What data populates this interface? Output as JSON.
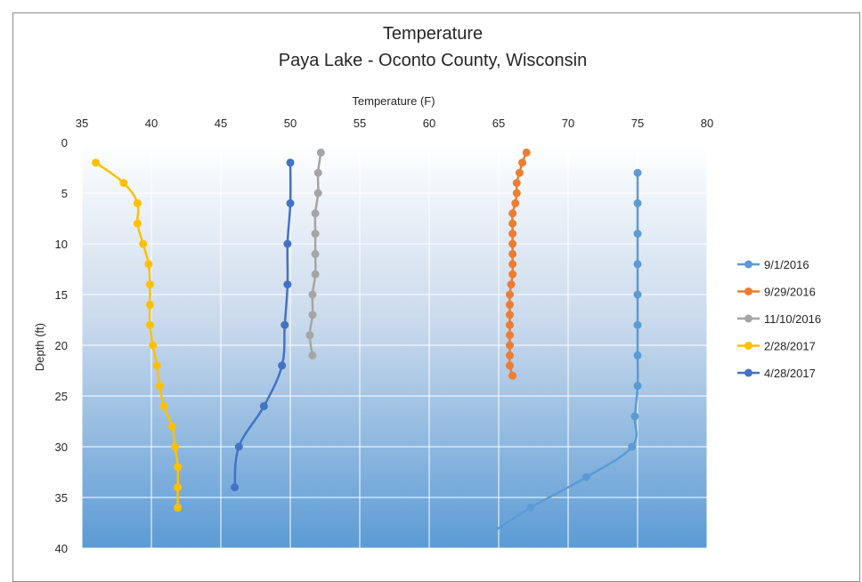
{
  "chart_data": {
    "type": "line",
    "title": "Temperature",
    "subtitle": "Paya Lake - Oconto County, Wisconsin",
    "xlabel": "Temperature (F)",
    "ylabel": "Depth (ft)",
    "xlim": [
      35,
      80
    ],
    "ylim": [
      0,
      40
    ],
    "x_ticks": [
      "35",
      "40",
      "45",
      "50",
      "55",
      "60",
      "65",
      "70",
      "75",
      "80"
    ],
    "y_ticks": [
      "0",
      "5",
      "10",
      "15",
      "20",
      "25",
      "30",
      "35",
      "40"
    ],
    "y_axis_inverted": true,
    "x_axis_position": "top",
    "grid": true,
    "legend_position": "right",
    "series": [
      {
        "name": "9/1/2016",
        "color": "#5b9bd5",
        "points": [
          [
            75,
            3
          ],
          [
            75,
            6
          ],
          [
            75,
            9
          ],
          [
            75,
            12
          ],
          [
            75,
            15
          ],
          [
            75,
            18
          ],
          [
            75,
            21
          ],
          [
            75,
            24
          ],
          [
            74.8,
            27
          ],
          [
            74.6,
            30
          ],
          [
            71.3,
            33
          ],
          [
            67.3,
            36
          ],
          [
            64.8,
            38.2
          ]
        ]
      },
      {
        "name": "9/29/2016",
        "color": "#ed7d31",
        "points": [
          [
            67,
            1
          ],
          [
            66.7,
            2
          ],
          [
            66.5,
            3
          ],
          [
            66.3,
            4
          ],
          [
            66.3,
            5
          ],
          [
            66.2,
            6
          ],
          [
            66.0,
            7
          ],
          [
            66.0,
            8
          ],
          [
            66.0,
            9
          ],
          [
            66.0,
            10
          ],
          [
            66.0,
            11
          ],
          [
            66.0,
            12
          ],
          [
            66.0,
            13
          ],
          [
            65.9,
            14
          ],
          [
            65.8,
            15
          ],
          [
            65.8,
            16
          ],
          [
            65.8,
            17
          ],
          [
            65.8,
            18
          ],
          [
            65.8,
            19
          ],
          [
            65.8,
            20
          ],
          [
            65.8,
            21
          ],
          [
            65.8,
            22
          ],
          [
            66.0,
            23
          ]
        ]
      },
      {
        "name": "11/10/2016",
        "color": "#a5a5a5",
        "points": [
          [
            52.2,
            1
          ],
          [
            52.0,
            3
          ],
          [
            52.0,
            5
          ],
          [
            51.8,
            7
          ],
          [
            51.8,
            9
          ],
          [
            51.8,
            11
          ],
          [
            51.8,
            13
          ],
          [
            51.6,
            15
          ],
          [
            51.6,
            17
          ],
          [
            51.4,
            19
          ],
          [
            51.6,
            21
          ]
        ]
      },
      {
        "name": "2/28/2017",
        "color": "#ffc000",
        "points": [
          [
            36,
            2
          ],
          [
            38,
            4
          ],
          [
            39,
            6
          ],
          [
            39,
            8
          ],
          [
            39.4,
            10
          ],
          [
            39.8,
            12
          ],
          [
            39.9,
            14
          ],
          [
            39.9,
            16
          ],
          [
            39.9,
            18
          ],
          [
            40.1,
            20
          ],
          [
            40.4,
            22
          ],
          [
            40.6,
            24
          ],
          [
            40.9,
            26
          ],
          [
            41.5,
            28
          ],
          [
            41.7,
            30
          ],
          [
            41.9,
            32
          ],
          [
            41.9,
            34
          ],
          [
            41.9,
            36
          ]
        ]
      },
      {
        "name": "4/28/2017",
        "color": "#4472c4",
        "points": [
          [
            50,
            2
          ],
          [
            50,
            6
          ],
          [
            49.8,
            10
          ],
          [
            49.8,
            14
          ],
          [
            49.6,
            18
          ],
          [
            49.4,
            22
          ],
          [
            48.1,
            26
          ],
          [
            46.3,
            30
          ],
          [
            46,
            34
          ]
        ]
      }
    ]
  }
}
